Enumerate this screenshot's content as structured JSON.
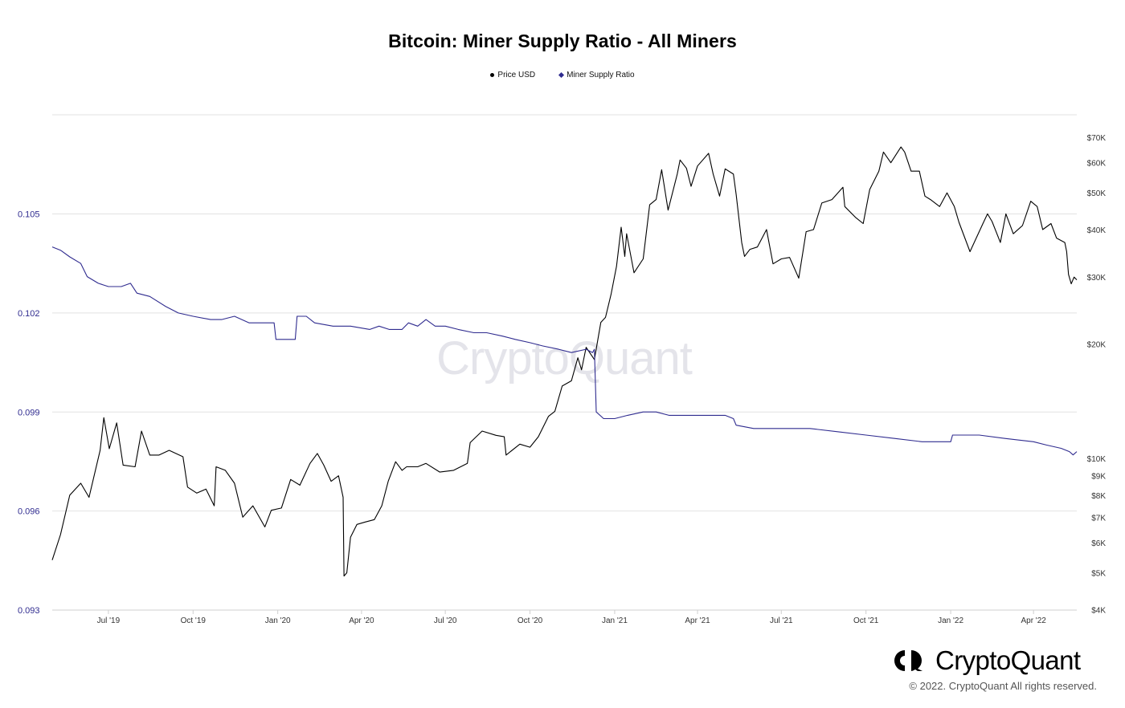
{
  "chart_data": {
    "type": "line",
    "title": "Bitcoin: Miner Supply Ratio - All Miners",
    "watermark": "CryptoQuant",
    "grid": true,
    "legend_placement": "top-center",
    "x_range": [
      "2019-05-01",
      "2022-05-18"
    ],
    "x_ticks": [
      "Jul '19",
      "Oct '19",
      "Jan '20",
      "Apr '20",
      "Jul '20",
      "Oct '20",
      "Jan '21",
      "Apr '21",
      "Jul '21",
      "Oct '21",
      "Jan '22",
      "Apr '22"
    ],
    "x_tick_dates": [
      "2019-07-01",
      "2019-10-01",
      "2020-01-01",
      "2020-04-01",
      "2020-07-01",
      "2020-10-01",
      "2021-01-01",
      "2021-04-01",
      "2021-07-01",
      "2021-10-01",
      "2022-01-01",
      "2022-04-01"
    ],
    "y_left": {
      "label": "",
      "ylim": [
        0.093,
        0.108
      ],
      "ticks": [
        "0.093",
        "0.096",
        "0.099",
        "0.102",
        "0.105"
      ],
      "tick_values": [
        0.093,
        0.096,
        0.099,
        0.102,
        0.105
      ]
    },
    "y_right": {
      "label": "",
      "scale": "log",
      "ylim": [
        4000,
        80000
      ],
      "ticks": [
        "$4K",
        "$5K",
        "$6K",
        "$7K",
        "$8K",
        "$9K",
        "$10K",
        "$20K",
        "$30K",
        "$40K",
        "$50K",
        "$60K",
        "$70K"
      ],
      "tick_values": [
        4000,
        5000,
        6000,
        7000,
        8000,
        9000,
        10000,
        20000,
        30000,
        40000,
        50000,
        60000,
        70000
      ]
    },
    "series": [
      {
        "name": "Price USD",
        "axis": "right",
        "color": "#000000",
        "points": [
          [
            "2019-05-01",
            5400
          ],
          [
            "2019-05-10",
            6300
          ],
          [
            "2019-05-20",
            8000
          ],
          [
            "2019-06-01",
            8600
          ],
          [
            "2019-06-10",
            7900
          ],
          [
            "2019-06-22",
            10500
          ],
          [
            "2019-06-26",
            12800
          ],
          [
            "2019-07-02",
            10600
          ],
          [
            "2019-07-10",
            12400
          ],
          [
            "2019-07-17",
            9600
          ],
          [
            "2019-07-30",
            9500
          ],
          [
            "2019-08-06",
            11800
          ],
          [
            "2019-08-15",
            10200
          ],
          [
            "2019-08-25",
            10200
          ],
          [
            "2019-09-05",
            10500
          ],
          [
            "2019-09-20",
            10100
          ],
          [
            "2019-09-25",
            8400
          ],
          [
            "2019-10-05",
            8100
          ],
          [
            "2019-10-15",
            8300
          ],
          [
            "2019-10-24",
            7500
          ],
          [
            "2019-10-26",
            9500
          ],
          [
            "2019-11-05",
            9300
          ],
          [
            "2019-11-15",
            8600
          ],
          [
            "2019-11-24",
            7000
          ],
          [
            "2019-12-05",
            7500
          ],
          [
            "2019-12-18",
            6600
          ],
          [
            "2019-12-25",
            7300
          ],
          [
            "2020-01-05",
            7400
          ],
          [
            "2020-01-15",
            8800
          ],
          [
            "2020-01-25",
            8500
          ],
          [
            "2020-02-05",
            9700
          ],
          [
            "2020-02-13",
            10300
          ],
          [
            "2020-02-20",
            9600
          ],
          [
            "2020-02-28",
            8700
          ],
          [
            "2020-03-07",
            9000
          ],
          [
            "2020-03-12",
            7900
          ],
          [
            "2020-03-13",
            4900
          ],
          [
            "2020-03-16",
            5000
          ],
          [
            "2020-03-20",
            6200
          ],
          [
            "2020-03-27",
            6700
          ],
          [
            "2020-04-05",
            6800
          ],
          [
            "2020-04-15",
            6900
          ],
          [
            "2020-04-23",
            7500
          ],
          [
            "2020-04-30",
            8700
          ],
          [
            "2020-05-08",
            9800
          ],
          [
            "2020-05-15",
            9300
          ],
          [
            "2020-05-20",
            9500
          ],
          [
            "2020-06-01",
            9500
          ],
          [
            "2020-06-10",
            9700
          ],
          [
            "2020-06-25",
            9200
          ],
          [
            "2020-07-10",
            9300
          ],
          [
            "2020-07-25",
            9700
          ],
          [
            "2020-07-28",
            11000
          ],
          [
            "2020-08-10",
            11800
          ],
          [
            "2020-08-25",
            11500
          ],
          [
            "2020-09-03",
            11400
          ],
          [
            "2020-09-05",
            10200
          ],
          [
            "2020-09-20",
            10900
          ],
          [
            "2020-10-01",
            10700
          ],
          [
            "2020-10-10",
            11400
          ],
          [
            "2020-10-21",
            12900
          ],
          [
            "2020-10-28",
            13300
          ],
          [
            "2020-11-05",
            15500
          ],
          [
            "2020-11-15",
            16000
          ],
          [
            "2020-11-22",
            18400
          ],
          [
            "2020-11-26",
            17100
          ],
          [
            "2020-12-01",
            19600
          ],
          [
            "2020-12-10",
            18200
          ],
          [
            "2020-12-17",
            22800
          ],
          [
            "2020-12-22",
            23500
          ],
          [
            "2020-12-28",
            27000
          ],
          [
            "2021-01-03",
            32000
          ],
          [
            "2021-01-08",
            40600
          ],
          [
            "2021-01-12",
            34000
          ],
          [
            "2021-01-14",
            39000
          ],
          [
            "2021-01-22",
            30800
          ],
          [
            "2021-02-01",
            33500
          ],
          [
            "2021-02-08",
            46500
          ],
          [
            "2021-02-15",
            48000
          ],
          [
            "2021-02-21",
            57500
          ],
          [
            "2021-02-28",
            45000
          ],
          [
            "2021-03-10",
            56000
          ],
          [
            "2021-03-13",
            61000
          ],
          [
            "2021-03-20",
            58000
          ],
          [
            "2021-03-25",
            52000
          ],
          [
            "2021-04-01",
            58800
          ],
          [
            "2021-04-13",
            63500
          ],
          [
            "2021-04-18",
            56000
          ],
          [
            "2021-04-25",
            49000
          ],
          [
            "2021-05-01",
            57800
          ],
          [
            "2021-05-10",
            56000
          ],
          [
            "2021-05-13",
            49500
          ],
          [
            "2021-05-19",
            37000
          ],
          [
            "2021-05-22",
            34000
          ],
          [
            "2021-05-28",
            35500
          ],
          [
            "2021-06-05",
            36000
          ],
          [
            "2021-06-15",
            40000
          ],
          [
            "2021-06-22",
            32500
          ],
          [
            "2021-07-01",
            33500
          ],
          [
            "2021-07-10",
            33800
          ],
          [
            "2021-07-20",
            29800
          ],
          [
            "2021-07-28",
            39500
          ],
          [
            "2021-08-05",
            40000
          ],
          [
            "2021-08-14",
            47000
          ],
          [
            "2021-08-25",
            48000
          ],
          [
            "2021-09-06",
            51700
          ],
          [
            "2021-09-08",
            46000
          ],
          [
            "2021-09-20",
            43000
          ],
          [
            "2021-09-28",
            41500
          ],
          [
            "2021-10-05",
            51000
          ],
          [
            "2021-10-15",
            57000
          ],
          [
            "2021-10-20",
            64000
          ],
          [
            "2021-10-28",
            60000
          ],
          [
            "2021-11-08",
            66000
          ],
          [
            "2021-11-12",
            64000
          ],
          [
            "2021-11-19",
            57000
          ],
          [
            "2021-11-28",
            57000
          ],
          [
            "2021-12-04",
            49000
          ],
          [
            "2021-12-10",
            48000
          ],
          [
            "2021-12-20",
            46000
          ],
          [
            "2021-12-28",
            50000
          ],
          [
            "2022-01-05",
            46000
          ],
          [
            "2022-01-10",
            41800
          ],
          [
            "2022-01-22",
            35000
          ],
          [
            "2022-02-05",
            41500
          ],
          [
            "2022-02-10",
            44000
          ],
          [
            "2022-02-15",
            42000
          ],
          [
            "2022-02-24",
            37000
          ],
          [
            "2022-03-02",
            44000
          ],
          [
            "2022-03-10",
            39000
          ],
          [
            "2022-03-20",
            41000
          ],
          [
            "2022-03-29",
            47500
          ],
          [
            "2022-04-05",
            46000
          ],
          [
            "2022-04-11",
            40000
          ],
          [
            "2022-04-20",
            41500
          ],
          [
            "2022-04-26",
            38000
          ],
          [
            "2022-05-05",
            37000
          ],
          [
            "2022-05-07",
            35000
          ],
          [
            "2022-05-09",
            30500
          ],
          [
            "2022-05-12",
            28800
          ],
          [
            "2022-05-15",
            30000
          ],
          [
            "2022-05-18",
            29500
          ]
        ]
      },
      {
        "name": "Miner Supply Ratio",
        "axis": "left",
        "color": "#2f2b8f",
        "points": [
          [
            "2019-05-01",
            0.104
          ],
          [
            "2019-05-10",
            0.1039
          ],
          [
            "2019-05-20",
            0.1037
          ],
          [
            "2019-06-01",
            0.1035
          ],
          [
            "2019-06-08",
            0.1031
          ],
          [
            "2019-06-20",
            0.1029
          ],
          [
            "2019-07-01",
            0.1028
          ],
          [
            "2019-07-15",
            0.1028
          ],
          [
            "2019-07-25",
            0.1029
          ],
          [
            "2019-08-01",
            0.1026
          ],
          [
            "2019-08-15",
            0.1025
          ],
          [
            "2019-09-01",
            0.1022
          ],
          [
            "2019-09-15",
            0.102
          ],
          [
            "2019-10-01",
            0.1019
          ],
          [
            "2019-10-20",
            0.1018
          ],
          [
            "2019-11-01",
            0.1018
          ],
          [
            "2019-11-15",
            0.1019
          ],
          [
            "2019-12-01",
            0.1017
          ],
          [
            "2019-12-15",
            0.1017
          ],
          [
            "2019-12-28",
            0.1017
          ],
          [
            "2019-12-30",
            0.1012
          ],
          [
            "2020-01-10",
            0.1012
          ],
          [
            "2020-01-20",
            0.1012
          ],
          [
            "2020-01-22",
            0.1019
          ],
          [
            "2020-02-01",
            0.1019
          ],
          [
            "2020-02-10",
            0.1017
          ],
          [
            "2020-03-01",
            0.1016
          ],
          [
            "2020-03-20",
            0.1016
          ],
          [
            "2020-04-10",
            0.1015
          ],
          [
            "2020-04-20",
            0.1016
          ],
          [
            "2020-05-01",
            0.1015
          ],
          [
            "2020-05-15",
            0.1015
          ],
          [
            "2020-05-22",
            0.1017
          ],
          [
            "2020-06-01",
            0.1016
          ],
          [
            "2020-06-10",
            0.1018
          ],
          [
            "2020-06-20",
            0.1016
          ],
          [
            "2020-07-01",
            0.1016
          ],
          [
            "2020-07-15",
            0.1015
          ],
          [
            "2020-08-01",
            0.1014
          ],
          [
            "2020-08-15",
            0.1014
          ],
          [
            "2020-09-01",
            0.1013
          ],
          [
            "2020-09-15",
            0.1012
          ],
          [
            "2020-10-01",
            0.1011
          ],
          [
            "2020-10-15",
            0.101
          ],
          [
            "2020-11-01",
            0.1009
          ],
          [
            "2020-11-15",
            0.1008
          ],
          [
            "2020-12-01",
            0.1009
          ],
          [
            "2020-12-08",
            0.1008
          ],
          [
            "2020-12-10",
            0.1009
          ],
          [
            "2020-12-12",
            0.099
          ],
          [
            "2020-12-20",
            0.0988
          ],
          [
            "2021-01-01",
            0.0988
          ],
          [
            "2021-01-15",
            0.0989
          ],
          [
            "2021-02-01",
            0.099
          ],
          [
            "2021-02-15",
            0.099
          ],
          [
            "2021-03-01",
            0.0989
          ],
          [
            "2021-03-15",
            0.0989
          ],
          [
            "2021-04-01",
            0.0989
          ],
          [
            "2021-04-15",
            0.0989
          ],
          [
            "2021-05-01",
            0.0989
          ],
          [
            "2021-05-10",
            0.0988
          ],
          [
            "2021-05-13",
            0.0986
          ],
          [
            "2021-06-01",
            0.0985
          ],
          [
            "2021-07-01",
            0.0985
          ],
          [
            "2021-08-01",
            0.0985
          ],
          [
            "2021-09-01",
            0.0984
          ],
          [
            "2021-10-01",
            0.0983
          ],
          [
            "2021-11-01",
            0.0982
          ],
          [
            "2021-12-01",
            0.0981
          ],
          [
            "2021-12-20",
            0.0981
          ],
          [
            "2022-01-01",
            0.0981
          ],
          [
            "2022-01-03",
            0.0983
          ],
          [
            "2022-01-20",
            0.0983
          ],
          [
            "2022-02-01",
            0.0983
          ],
          [
            "2022-03-01",
            0.0982
          ],
          [
            "2022-04-01",
            0.0981
          ],
          [
            "2022-04-15",
            0.098
          ],
          [
            "2022-05-01",
            0.0979
          ],
          [
            "2022-05-10",
            0.0978
          ],
          [
            "2022-05-14",
            0.0977
          ],
          [
            "2022-05-18",
            0.0978
          ]
        ]
      }
    ]
  },
  "footer": {
    "logo_text": "CryptoQuant",
    "copyright": "© 2022. CryptoQuant All rights reserved."
  }
}
